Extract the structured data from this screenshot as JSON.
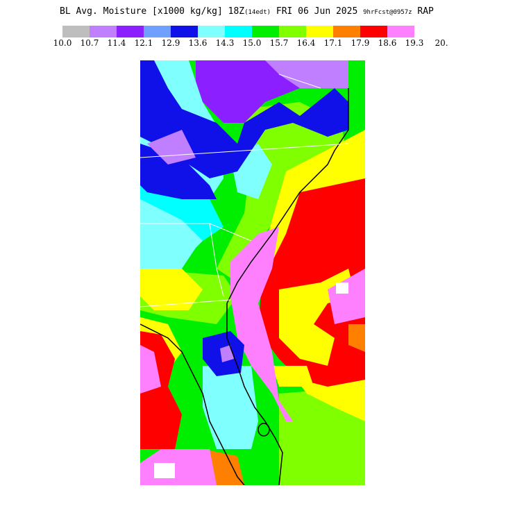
{
  "title": {
    "main": "BL Avg. Moisture [x1000 kg/kg] 18Z",
    "local_time": "(14edt)",
    "date": "FRI 06 Jun 2025",
    "forecast": "9hrFcst@0957z",
    "model": "RAP"
  },
  "legend": {
    "ticks": [
      "10.0",
      "10.7",
      "11.4",
      "12.1",
      "12.9",
      "13.6",
      "14.3",
      "15.0",
      "15.7",
      "16.4",
      "17.1",
      "17.9",
      "18.6",
      "19.3",
      "20."
    ],
    "colors": [
      "#bebebe",
      "#bf7fff",
      "#8b1fff",
      "#6f9fff",
      "#1010e8",
      "#80ffff",
      "#00ffff",
      "#00ee00",
      "#80ff00",
      "#ffff00",
      "#ff8000",
      "#ff0000",
      "#ff80ff"
    ]
  },
  "map": {
    "field_colors": {
      "cyan_light": "#80ffff",
      "cyan": "#00ffff",
      "blue": "#1010e8",
      "purple": "#8b1fff",
      "lavender": "#bf7fff",
      "green": "#00ee00",
      "lime": "#80ff00",
      "yellow": "#ffff00",
      "orange": "#ff8000",
      "red": "#ff0000",
      "pink": "#ff80ff",
      "white": "#ffffff"
    }
  }
}
